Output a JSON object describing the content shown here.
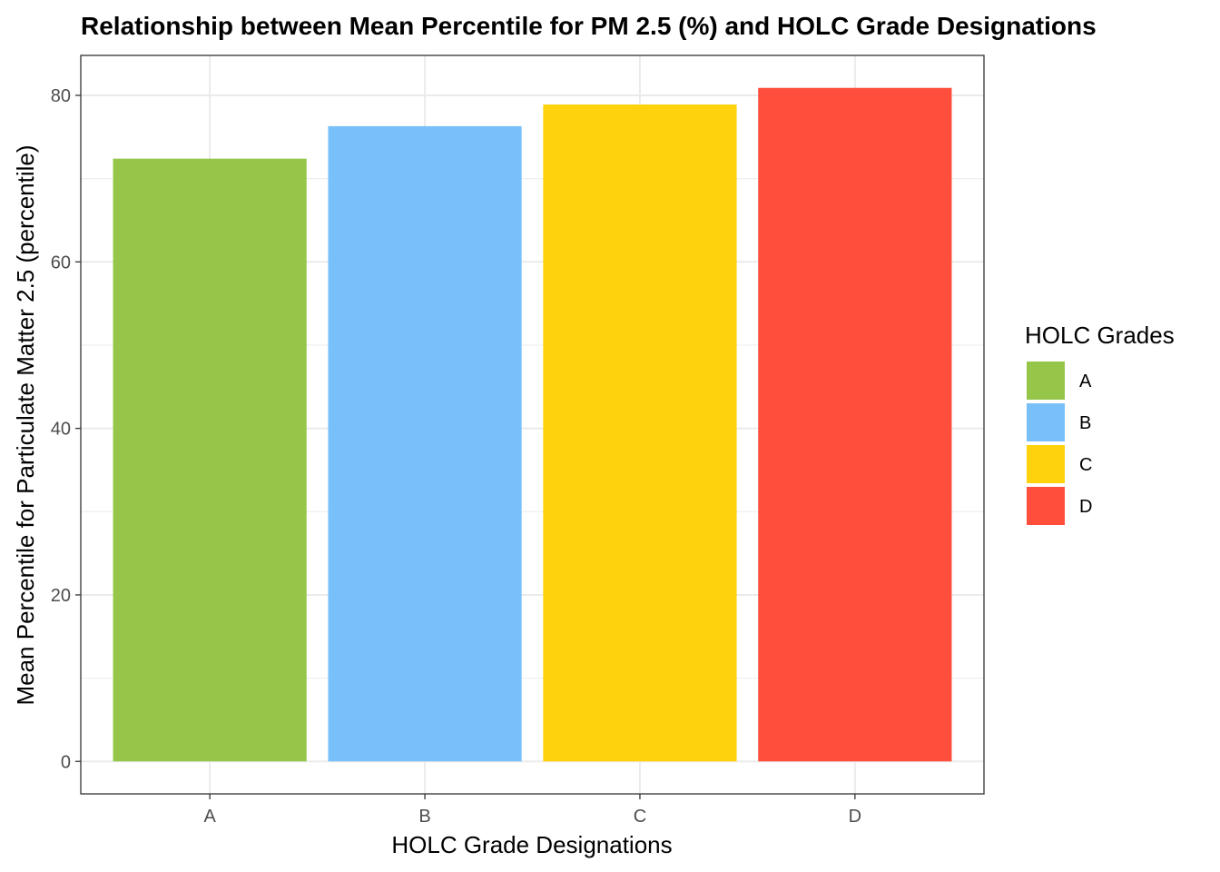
{
  "chart_data": {
    "type": "bar",
    "title": "Relationship between Mean Percentile for PM 2.5 (%) and HOLC Grade Designations",
    "xlabel": "HOLC Grade Designations",
    "ylabel": "Mean Percentile for Particulate Matter 2.5 (percentile)",
    "categories": [
      "A",
      "B",
      "C",
      "D"
    ],
    "values": [
      72.4,
      76.3,
      78.9,
      80.9
    ],
    "colors": [
      "#95C64A",
      "#78C0FA",
      "#FED20C",
      "#FF4F3C"
    ],
    "ylim": [
      -3.9,
      84.8
    ],
    "yticks": [
      0,
      20,
      40,
      60,
      80
    ],
    "ytick_labels": [
      "0",
      "20",
      "40",
      "60",
      "80"
    ],
    "grid": true,
    "legend": {
      "title": "HOLC Grades",
      "placement": "right",
      "entries": [
        "A",
        "B",
        "C",
        "D"
      ]
    }
  }
}
